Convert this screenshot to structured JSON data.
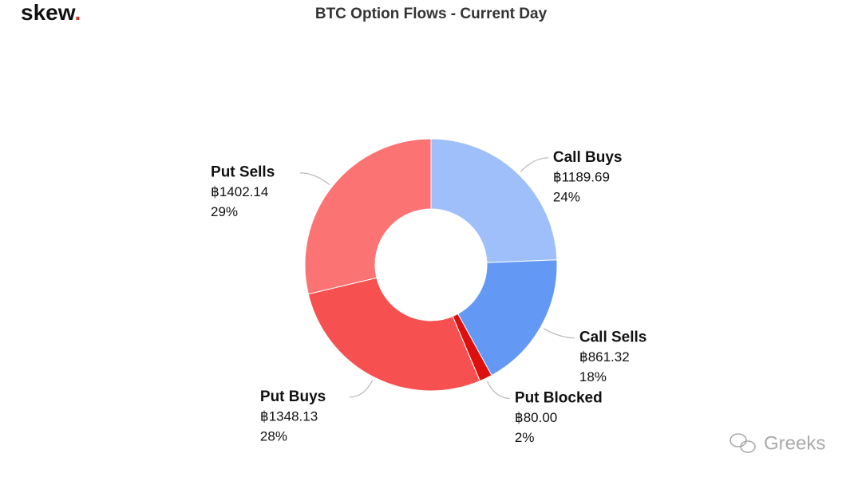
{
  "logo": "skew",
  "logo_mark": ".",
  "watermark": "Greeks",
  "chart_data": {
    "type": "donut",
    "title": "BTC Option Flows - Current Day",
    "categories": [
      "Call Buys",
      "Call Sells",
      "Put Blocked",
      "Put Buys",
      "Put Sells"
    ],
    "values": [
      1189.69,
      861.32,
      80.0,
      1348.13,
      1402.14
    ],
    "value_labels": [
      "฿1189.69",
      "฿861.32",
      "฿80.00",
      "฿1348.13",
      "฿1402.14"
    ],
    "percentages": [
      24,
      18,
      2,
      28,
      29
    ],
    "percentage_labels": [
      "24%",
      "18%",
      "2%",
      "28%",
      "29%"
    ],
    "colors": [
      "#9fbffb",
      "#6399f4",
      "#dd1010",
      "#f75050",
      "#fc7373"
    ]
  }
}
